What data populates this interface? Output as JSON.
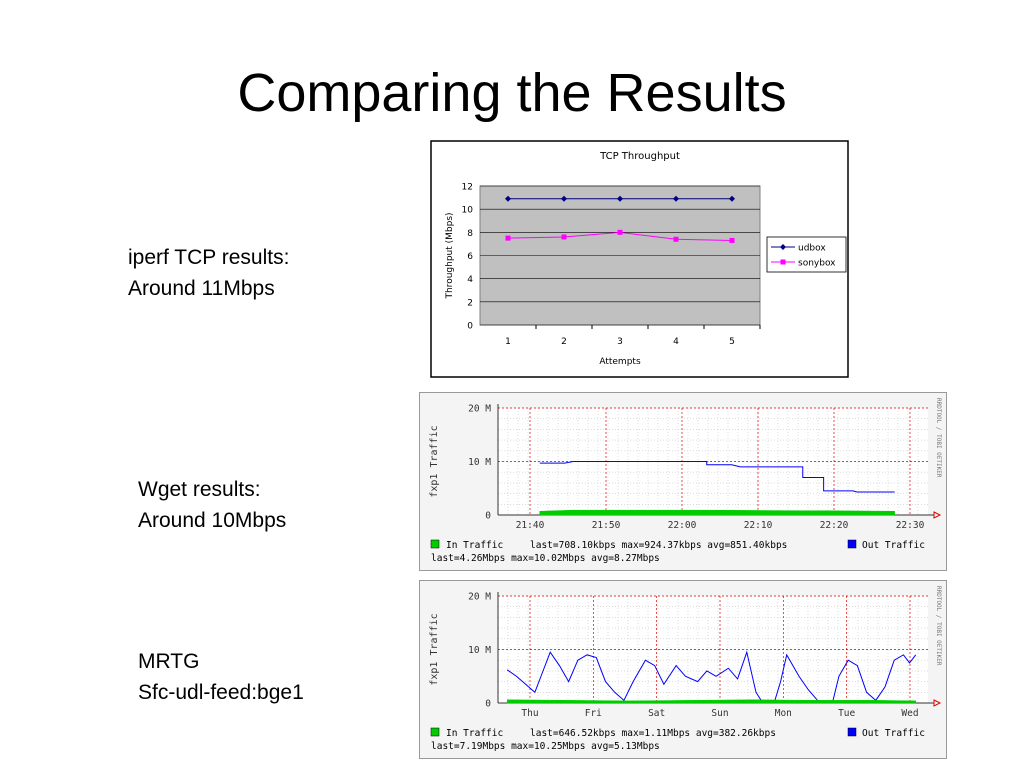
{
  "slide": {
    "title": "Comparing the Results",
    "captions": [
      {
        "line1": "iperf TCP results:",
        "line2": "Around 11Mbps"
      },
      {
        "line1": "Wget results:",
        "line2": "Around 10Mbps"
      },
      {
        "line1": "MRTG",
        "line2": "Sfc-udl-feed:bge1"
      }
    ]
  },
  "chart_data": [
    {
      "type": "line",
      "title": "TCP Throughput",
      "xlabel": "Attempts",
      "ylabel": "Throughput (Mbps)",
      "categories": [
        "1",
        "2",
        "3",
        "4",
        "5"
      ],
      "ylim": [
        0,
        12
      ],
      "yticks": [
        "0",
        "2",
        "4",
        "6",
        "8",
        "10",
        "12"
      ],
      "grid": true,
      "legend": "right",
      "series": [
        {
          "name": "udbox",
          "values": [
            10.9,
            10.9,
            10.9,
            10.9,
            10.9
          ],
          "color": "#000080",
          "marker": "diamond"
        },
        {
          "name": "sonybox",
          "values": [
            7.5,
            7.6,
            8.0,
            7.4,
            7.3
          ],
          "color": "#ff00ff",
          "marker": "square"
        }
      ]
    },
    {
      "type": "area",
      "ylabel": "fxp1 Traffic",
      "watermark": "RRDTOOL / TOBI OETIKER",
      "yticks": [
        "0",
        "10 M",
        "20 M"
      ],
      "ylim": [
        0,
        20
      ],
      "xticks": [
        "21:40",
        "21:50",
        "22:00",
        "22:10",
        "22:20",
        "22:30"
      ],
      "series": [
        {
          "name": "Out Traffic",
          "color": "#0000ff",
          "style": "line",
          "points": [
            [
              21.62,
              9.7
            ],
            [
              21.68,
              9.7
            ],
            [
              21.7,
              10.0
            ],
            [
              21.83,
              10.0
            ],
            [
              22.02,
              10.0
            ],
            [
              22.02,
              9.4
            ],
            [
              22.08,
              9.4
            ],
            [
              22.1,
              9.0
            ],
            [
              22.22,
              9.0
            ],
            [
              22.25,
              9.0
            ],
            [
              22.25,
              7.0
            ],
            [
              22.3,
              7.0
            ],
            [
              22.3,
              4.5
            ],
            [
              22.37,
              4.5
            ],
            [
              22.38,
              4.3
            ],
            [
              22.47,
              4.3
            ]
          ]
        },
        {
          "name": "In Traffic",
          "color": "#00cc00",
          "style": "area",
          "points": [
            [
              21.62,
              0.7
            ],
            [
              21.7,
              0.9
            ],
            [
              21.83,
              0.9
            ],
            [
              22.02,
              0.9
            ],
            [
              22.25,
              0.8
            ],
            [
              22.3,
              0.8
            ],
            [
              22.47,
              0.7
            ]
          ]
        }
      ],
      "legend": {
        "in_label": "In Traffic",
        "in_stats": "last=708.10kbps   max=924.37kbps   avg=851.40kbps",
        "out_label": "Out Traffic",
        "out_stats": "last=4.26Mbps   max=10.02Mbps   avg=8.27Mbps"
      }
    },
    {
      "type": "area",
      "ylabel": "fxp1 Traffic",
      "watermark": "RRDTOOL / TOBI OETIKER",
      "yticks": [
        "0",
        "10 M",
        "20 M"
      ],
      "ylim": [
        0,
        20
      ],
      "xticks": [
        "Thu",
        "Fri",
        "Sat",
        "Sun",
        "Mon",
        "Tue",
        "Wed"
      ],
      "series": [
        {
          "name": "Out Traffic",
          "color": "#0000ff",
          "style": "line",
          "points": [
            [
              0,
              6.2
            ],
            [
              0.15,
              5.0
            ],
            [
              0.3,
              3.5
            ],
            [
              0.45,
              2.0
            ],
            [
              0.55,
              5.0
            ],
            [
              0.7,
              9.5
            ],
            [
              0.85,
              7.0
            ],
            [
              1.0,
              4.0
            ],
            [
              1.15,
              8.0
            ],
            [
              1.3,
              9.0
            ],
            [
              1.45,
              8.5
            ],
            [
              1.6,
              4.0
            ],
            [
              1.75,
              2.0
            ],
            [
              1.9,
              0.5
            ],
            [
              2.05,
              4.0
            ],
            [
              2.25,
              8.0
            ],
            [
              2.4,
              7.0
            ],
            [
              2.55,
              3.5
            ],
            [
              2.75,
              7.0
            ],
            [
              2.9,
              5.0
            ],
            [
              3.1,
              4.0
            ],
            [
              3.25,
              6.0
            ],
            [
              3.4,
              5.0
            ],
            [
              3.6,
              6.5
            ],
            [
              3.75,
              4.5
            ],
            [
              3.9,
              9.5
            ],
            [
              4.05,
              2.0
            ],
            [
              4.15,
              0.2
            ],
            [
              4.35,
              0.2
            ],
            [
              4.45,
              4.0
            ],
            [
              4.55,
              9.0
            ],
            [
              4.75,
              5.0
            ],
            [
              4.9,
              2.5
            ],
            [
              5.05,
              0.5
            ],
            [
              5.15,
              0.3
            ],
            [
              5.3,
              0.3
            ],
            [
              5.4,
              5.0
            ],
            [
              5.55,
              8.0
            ],
            [
              5.7,
              7.0
            ],
            [
              5.85,
              2.0
            ],
            [
              6.0,
              0.5
            ],
            [
              6.15,
              3.0
            ],
            [
              6.3,
              8.0
            ],
            [
              6.45,
              9.0
            ],
            [
              6.55,
              7.5
            ],
            [
              6.65,
              9.0
            ]
          ]
        },
        {
          "name": "In Traffic",
          "color": "#00cc00",
          "style": "area",
          "points": [
            [
              0,
              0.6
            ],
            [
              1.0,
              0.5
            ],
            [
              2.0,
              0.4
            ],
            [
              3.0,
              0.5
            ],
            [
              4.0,
              0.6
            ],
            [
              5.0,
              0.5
            ],
            [
              6.0,
              0.5
            ],
            [
              6.65,
              0.4
            ]
          ]
        }
      ],
      "legend": {
        "in_label": "In Traffic",
        "in_stats": "last=646.52kbps   max=1.11Mbps   avg=382.26kbps",
        "out_label": "Out Traffic",
        "out_stats": "last=7.19Mbps   max=10.25Mbps   avg=5.13Mbps"
      }
    }
  ]
}
